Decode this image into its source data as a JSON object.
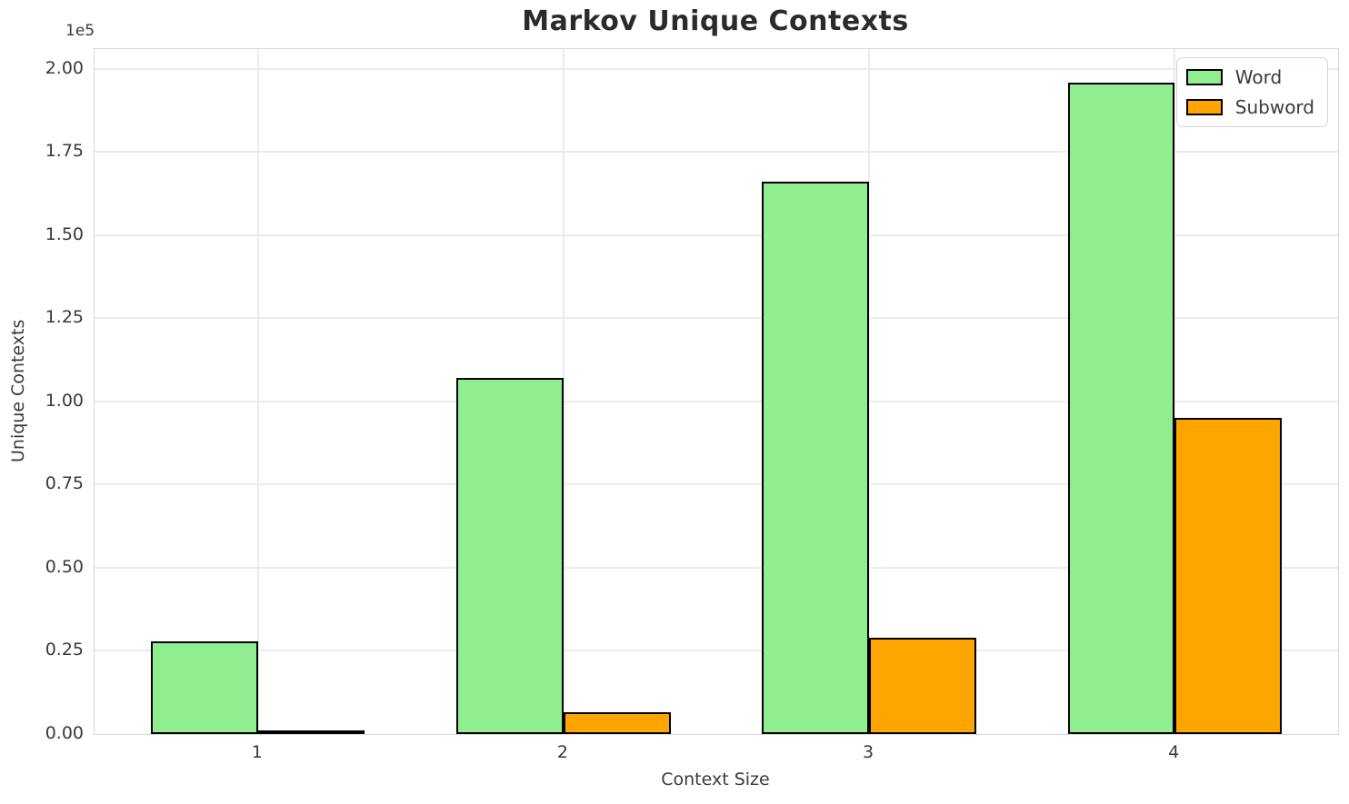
{
  "chart_data": {
    "type": "bar",
    "title": "Markov Unique Contexts",
    "xlabel": "Context Size",
    "ylabel": "Unique Contexts",
    "y_offset_label": "1e5",
    "categories": [
      "1",
      "2",
      "3",
      "4"
    ],
    "series": [
      {
        "name": "Word",
        "color": "#90EE90",
        "values": [
          28000,
          107000,
          166000,
          196000
        ]
      },
      {
        "name": "Subword",
        "color": "#FFA500",
        "values": [
          1000,
          6500,
          29000,
          95000
        ]
      }
    ],
    "bar_edge_color": "#000000",
    "bar_width_units": 0.35,
    "ylim": [
      0,
      206000
    ],
    "xlim_units": [
      -0.535,
      3.535
    ],
    "yticks": [
      {
        "value": 0,
        "label": "0.00"
      },
      {
        "value": 25000,
        "label": "0.25"
      },
      {
        "value": 50000,
        "label": "0.50"
      },
      {
        "value": 75000,
        "label": "0.75"
      },
      {
        "value": 100000,
        "label": "1.00"
      },
      {
        "value": 125000,
        "label": "1.25"
      },
      {
        "value": 150000,
        "label": "1.50"
      },
      {
        "value": 175000,
        "label": "1.75"
      },
      {
        "value": 200000,
        "label": "2.00"
      }
    ],
    "grid": true,
    "legend_position": "upper right"
  }
}
